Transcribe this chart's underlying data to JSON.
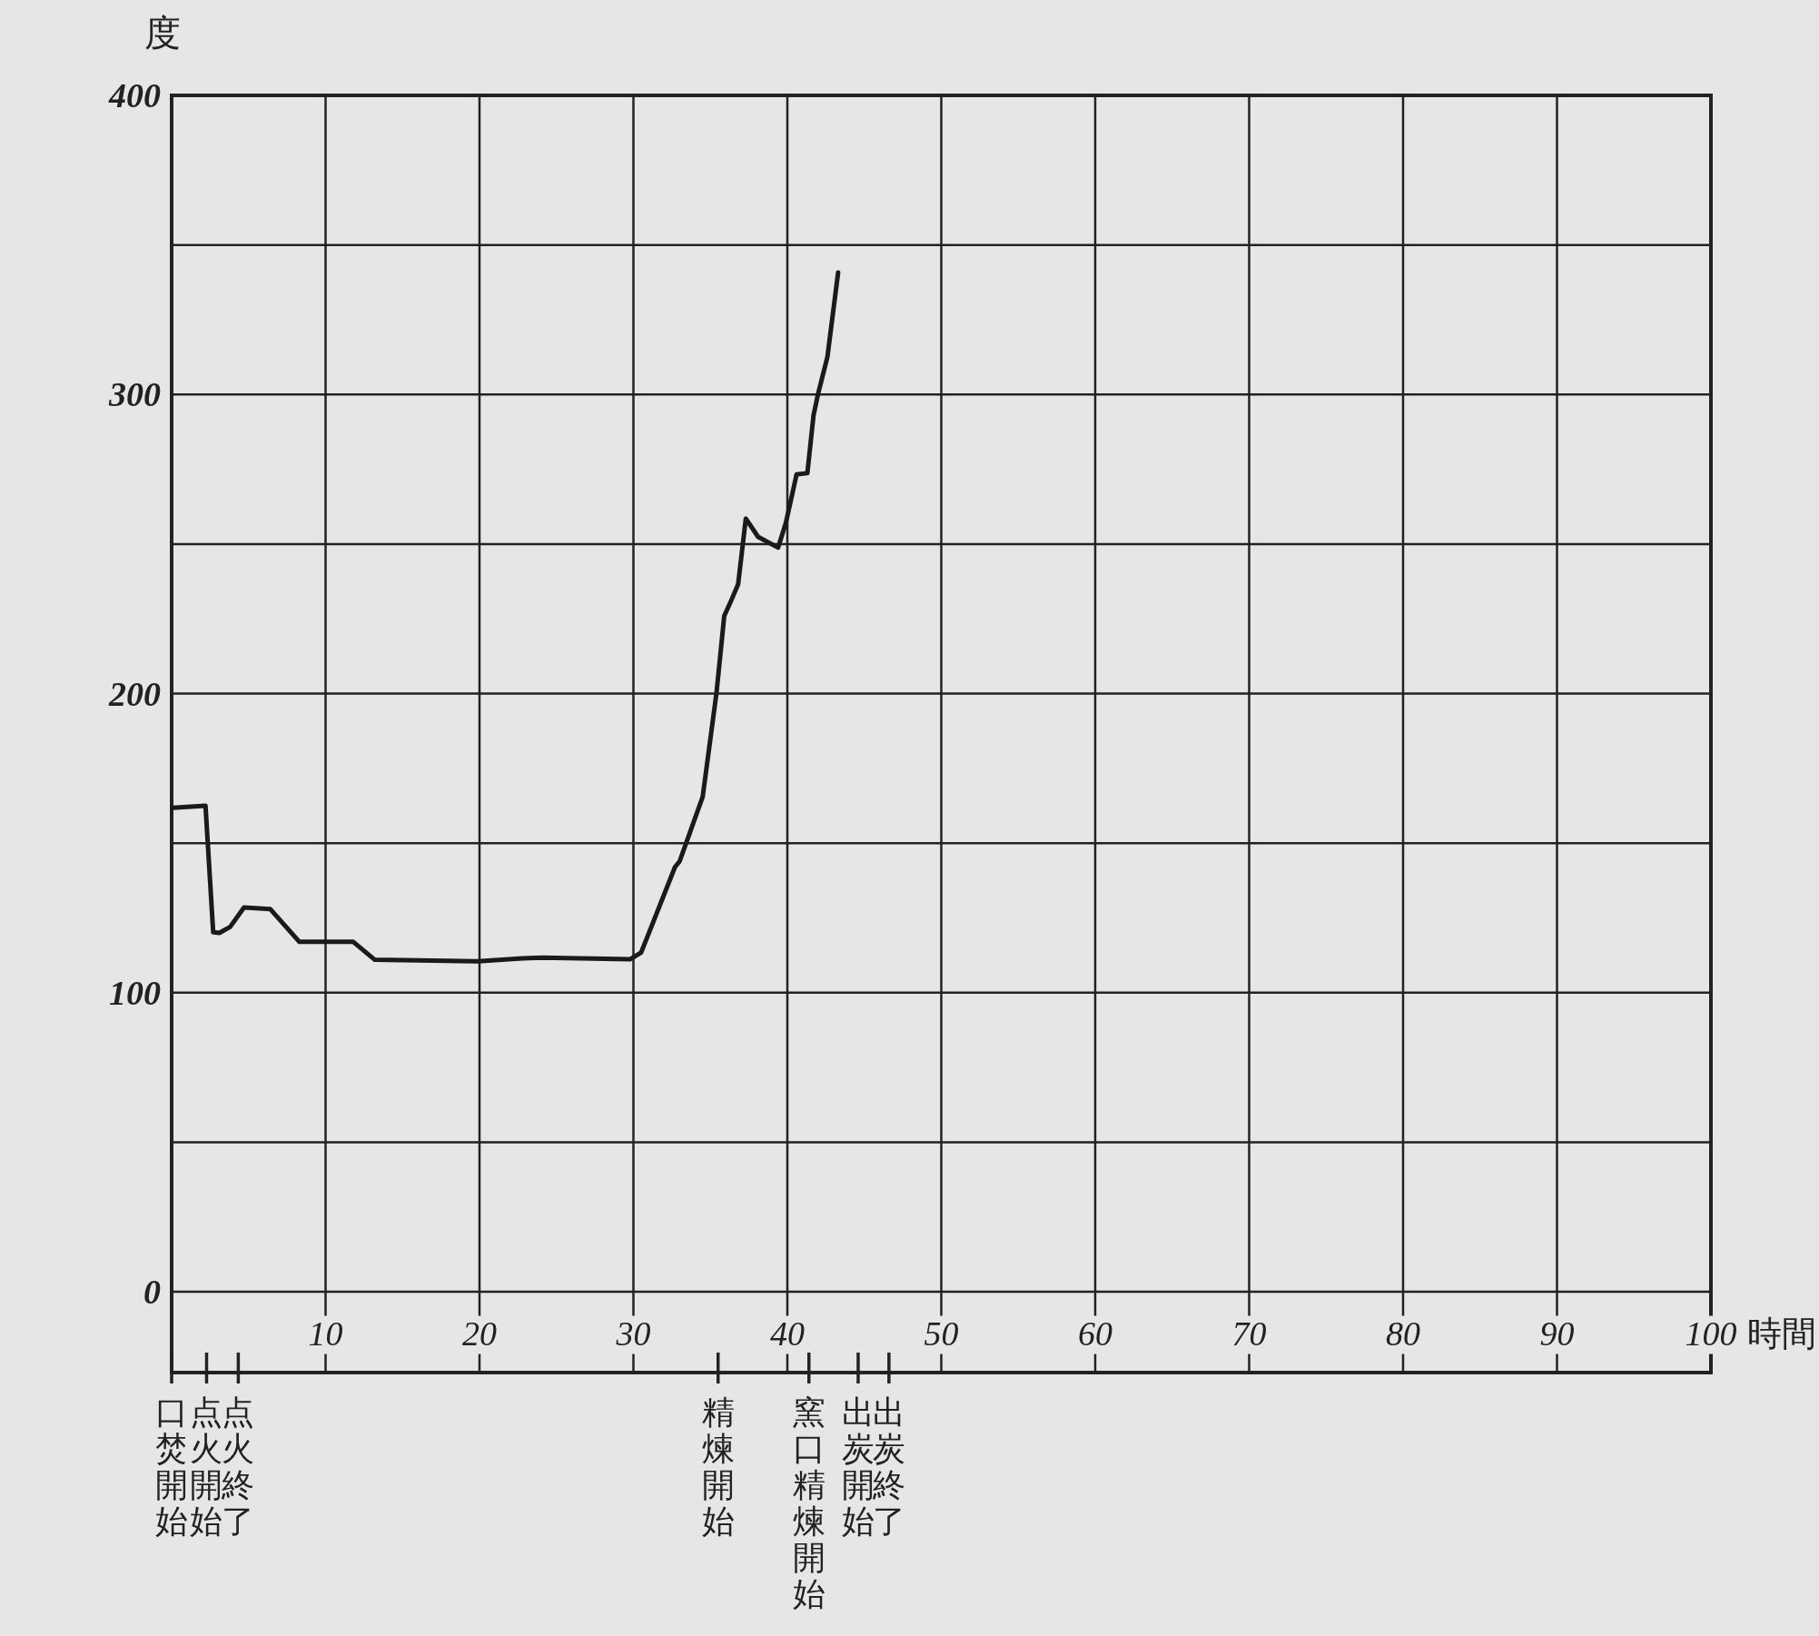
{
  "chart_data": {
    "type": "line",
    "xlabel": "時間",
    "ylabel": "度",
    "xlim": [
      0,
      100
    ],
    "xticks": [
      10,
      20,
      30,
      40,
      50,
      60,
      70,
      80,
      90,
      100
    ],
    "ylim": [
      -27,
      400
    ],
    "yticks": [
      0,
      {
        "value": 50,
        "label": null
      },
      100,
      {
        "value": 150,
        "label": null
      },
      200,
      {
        "value": 250,
        "label": null
      },
      300,
      {
        "value": 350,
        "label": null
      },
      400
    ],
    "ref_lines": [
      {
        "axis": "x",
        "value": 0,
        "label": "口焚開始"
      },
      {
        "axis": "x",
        "value": 2.27,
        "label": "点火開始"
      },
      {
        "axis": "x",
        "value": 4.33,
        "label": "点火終了"
      },
      {
        "axis": "x",
        "value": 35.5,
        "label": "精煉開始"
      },
      {
        "axis": "x",
        "value": 41.4,
        "label": "窯口精煉開始"
      },
      {
        "axis": "x",
        "value": 44.6,
        "label": "出炭開始"
      },
      {
        "axis": "x",
        "value": 46.6,
        "label": "出炭終了"
      }
    ],
    "grid": true,
    "line_style": "solid",
    "marker": "none",
    "series": [
      {
        "color": "#1a1a1a",
        "x": [
          0.1,
          2.2,
          2.7,
          3.1,
          3.8,
          4.7,
          6.4,
          8.3,
          11.8,
          13.2,
          19.9,
          22.8,
          24.1,
          29.8,
          30.5,
          32.7,
          33.0,
          34.5,
          35.4,
          35.9,
          36.3,
          36.8,
          37.3,
          38.1,
          39.4,
          39.9,
          40.6,
          41.3,
          41.7,
          42.0,
          42.6,
          43.3
        ],
        "values": [
          161.8,
          162.5,
          120.2,
          120,
          122,
          128.5,
          128,
          117,
          117,
          111,
          110.5,
          111.5,
          111.7,
          111.2,
          113.4,
          142,
          143.9,
          165.5,
          200.4,
          226,
          230.5,
          236.5,
          258.5,
          252.4,
          248.8,
          257,
          273.3,
          273.7,
          293,
          300.3,
          312.5,
          340.8
        ]
      }
    ]
  }
}
